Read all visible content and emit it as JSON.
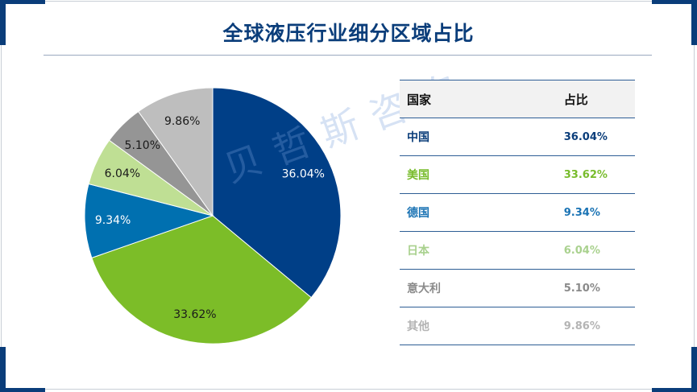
{
  "title": "全球液压行业细分区域占比",
  "watermark": "贝哲斯咨询",
  "colors": {
    "frame_accent": "#0a3d7a",
    "title": "#0a3d7a"
  },
  "table": {
    "headers": [
      "国家",
      "占比"
    ],
    "rows": [
      {
        "country": "中国",
        "share": "36.04%",
        "color": "#0a3d7a"
      },
      {
        "country": "美国",
        "share": "33.62%",
        "color": "#78bc2c"
      },
      {
        "country": "德国",
        "share": "9.34%",
        "color": "#1a73b4"
      },
      {
        "country": "日本",
        "share": "6.04%",
        "color": "#a9d18e"
      },
      {
        "country": "意大利",
        "share": "5.10%",
        "color": "#8a8a8a"
      },
      {
        "country": "其他",
        "share": "9.86%",
        "color": "#b4b4b4"
      }
    ]
  },
  "chart_data": {
    "type": "pie",
    "title": "全球液压行业细分区域占比",
    "start_angle_deg": 0,
    "direction": "clockwise",
    "slices": [
      {
        "label": "中国",
        "value": 36.04,
        "display": "36.04%",
        "color": "#003f87",
        "label_color": "#ffffff"
      },
      {
        "label": "美国",
        "value": 33.62,
        "display": "33.62%",
        "color": "#7cbd28",
        "label_color": "#1a1a1a"
      },
      {
        "label": "德国",
        "value": 9.34,
        "display": "9.34%",
        "color": "#0070b0",
        "label_color": "#ffffff"
      },
      {
        "label": "日本",
        "value": 6.04,
        "display": "6.04%",
        "color": "#bfdf94",
        "label_color": "#1a1a1a"
      },
      {
        "label": "意大利",
        "value": 5.1,
        "display": "5.10%",
        "color": "#959595",
        "label_color": "#1a1a1a"
      },
      {
        "label": "其他",
        "value": 9.86,
        "display": "9.86%",
        "color": "#bebebe",
        "label_color": "#1a1a1a"
      }
    ]
  }
}
